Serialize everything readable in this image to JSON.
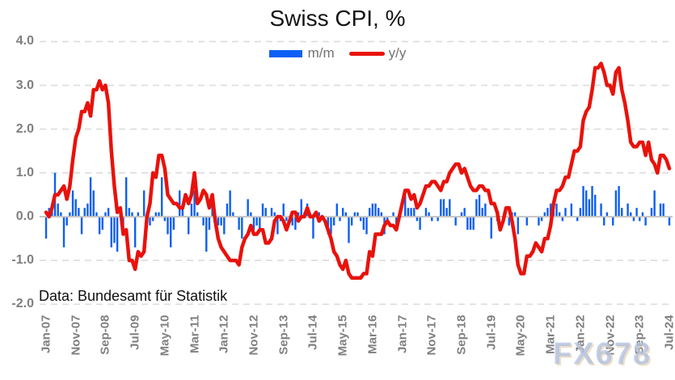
{
  "title": "Swiss CPI, %",
  "legend": {
    "mm_label": "m/m",
    "yy_label": "y/y"
  },
  "source_note": "Data: Bundesamt für Statistik",
  "watermark": "FX678",
  "colors": {
    "mm_bar": "#0d5ef5",
    "yy_line": "#e8120b",
    "grid": "#dcdcdc",
    "zero_line": "#c6c6c6",
    "axis_text": "#7f7f7f",
    "legend_text": "#737373",
    "title_text": "#141414"
  },
  "chart_data": {
    "type": "bar",
    "title": "Swiss CPI, %",
    "xlabel": "",
    "ylabel": "",
    "ylim": [
      -2.0,
      4.0
    ],
    "grid": "horizontal-dashed",
    "legend_position": "top-center",
    "x_start": "Jan-07",
    "x_end": "Jul-24",
    "x_frequency": "monthly",
    "x_tick_every_months": 10,
    "x_tick_labels": [
      "Jan-07",
      "Nov-07",
      "Sep-08",
      "Jul-09",
      "May-10",
      "Mar-11",
      "Jan-12",
      "Nov-12",
      "Sep-13",
      "Jul-14",
      "May-15",
      "Mar-16",
      "Jan-17",
      "Nov-17",
      "Sep-18",
      "Jul-19",
      "May-20",
      "Mar-21",
      "Jan-22",
      "Nov-22",
      "Sep-23",
      "Jul-24"
    ],
    "y_ticks": [
      "4.0",
      "3.0",
      "2.0",
      "1.0",
      "0.0",
      "-1.0",
      "-2.0"
    ],
    "series": [
      {
        "name": "m/m",
        "type": "bar",
        "color": "#0d5ef5",
        "values": [
          -0.5,
          0.2,
          0.2,
          1.0,
          0.3,
          0.1,
          -0.7,
          -0.2,
          0.1,
          0.6,
          0.4,
          0.2,
          -0.4,
          0.2,
          0.3,
          0.9,
          0.6,
          0.1,
          -0.4,
          -0.3,
          0.1,
          0.2,
          -0.7,
          -0.6,
          -0.8,
          0.2,
          -0.3,
          0.9,
          0.2,
          0.1,
          -0.7,
          0.1,
          0.0,
          0.6,
          0.1,
          -0.2,
          -0.1,
          0.1,
          0.1,
          0.9,
          -0.1,
          -0.4,
          -0.7,
          -0.3,
          0.0,
          0.6,
          0.2,
          0.0,
          -0.4,
          0.3,
          0.6,
          0.1,
          0.0,
          -0.2,
          -0.8,
          -0.3,
          0.3,
          0.1,
          -0.2,
          -0.2,
          -0.4,
          0.3,
          0.6,
          0.1,
          0.0,
          -0.3,
          -0.5,
          0.0,
          0.4,
          0.1,
          -0.3,
          -0.2,
          -0.3,
          0.3,
          0.2,
          0.0,
          0.2,
          0.1,
          -0.4,
          -0.1,
          0.3,
          -0.1,
          0.0,
          -0.2,
          -0.3,
          0.1,
          0.4,
          0.1,
          0.3,
          0.0,
          -0.5,
          0.0,
          0.1,
          0.0,
          0.0,
          -0.4,
          -0.4,
          -0.2,
          0.3,
          -0.1,
          0.2,
          0.1,
          -0.6,
          -0.2,
          0.1,
          0.1,
          -0.1,
          -0.3,
          -0.4,
          0.2,
          0.3,
          0.3,
          0.2,
          0.1,
          -0.4,
          -0.1,
          0.0,
          0.1,
          -0.2,
          0.0,
          0.0,
          0.5,
          0.2,
          0.2,
          0.2,
          -0.1,
          -0.3,
          0.0,
          0.2,
          0.1,
          -0.1,
          0.0,
          -0.1,
          0.4,
          0.4,
          0.2,
          0.4,
          0.0,
          -0.2,
          0.0,
          0.1,
          0.2,
          -0.3,
          -0.3,
          -0.3,
          0.4,
          0.5,
          0.2,
          0.3,
          0.0,
          -0.5,
          0.0,
          -0.1,
          0.0,
          0.0,
          0.0,
          -0.2,
          0.1,
          0.1,
          -0.4,
          0.0,
          0.0,
          -0.2,
          0.0,
          0.0,
          0.0,
          -0.2,
          -0.1,
          0.1,
          0.2,
          0.3,
          0.2,
          0.3,
          0.1,
          -0.1,
          0.2,
          0.0,
          0.3,
          0.0,
          -0.1,
          0.2,
          0.7,
          0.6,
          0.4,
          0.7,
          0.5,
          0.0,
          0.3,
          -0.2,
          0.1,
          0.0,
          -0.2,
          0.6,
          0.7,
          0.2,
          0.0,
          0.3,
          0.1,
          -0.1,
          0.2,
          -0.1,
          0.1,
          -0.2,
          0.0,
          0.2,
          0.6,
          0.0,
          0.3,
          0.3,
          0.0,
          -0.2
        ]
      },
      {
        "name": "y/y",
        "type": "line",
        "color": "#e8120b",
        "values": [
          0.1,
          0.0,
          0.2,
          0.5,
          0.5,
          0.6,
          0.7,
          0.4,
          0.7,
          1.3,
          1.8,
          2.0,
          2.4,
          2.4,
          2.6,
          2.3,
          2.9,
          2.9,
          3.1,
          2.9,
          3.0,
          2.6,
          1.5,
          0.7,
          0.1,
          0.2,
          -0.4,
          -0.3,
          -1.0,
          -1.0,
          -1.2,
          -0.8,
          -0.9,
          -0.8,
          0.0,
          0.3,
          1.0,
          0.9,
          1.4,
          1.4,
          1.1,
          0.5,
          0.4,
          0.3,
          0.3,
          0.2,
          0.2,
          0.5,
          0.3,
          0.5,
          1.0,
          0.3,
          0.4,
          0.6,
          0.5,
          0.2,
          0.5,
          -0.1,
          -0.5,
          -0.7,
          -0.8,
          -0.9,
          -1.0,
          -1.0,
          -1.0,
          -1.1,
          -0.7,
          -0.5,
          -0.4,
          -0.2,
          -0.4,
          -0.4,
          -0.3,
          -0.3,
          -0.6,
          -0.6,
          -0.5,
          -0.1,
          0.0,
          0.0,
          -0.1,
          -0.3,
          -0.1,
          0.1,
          0.1,
          -0.1,
          0.0,
          0.0,
          0.2,
          0.0,
          0.0,
          0.1,
          -0.1,
          0.0,
          -0.1,
          -0.3,
          -0.5,
          -0.8,
          -0.9,
          -1.1,
          -1.2,
          -1.0,
          -1.3,
          -1.4,
          -1.4,
          -1.4,
          -1.4,
          -1.3,
          -1.3,
          -0.8,
          -0.9,
          -0.4,
          -0.4,
          -0.4,
          -0.2,
          -0.1,
          -0.2,
          -0.2,
          -0.3,
          0.0,
          0.3,
          0.6,
          0.6,
          0.4,
          0.5,
          0.2,
          0.3,
          0.5,
          0.7,
          0.7,
          0.8,
          0.8,
          0.7,
          0.6,
          0.8,
          0.8,
          1.0,
          1.1,
          1.2,
          1.2,
          1.0,
          1.1,
          0.9,
          0.7,
          0.6,
          0.6,
          0.7,
          0.7,
          0.6,
          0.6,
          0.3,
          0.3,
          0.1,
          -0.3,
          -0.1,
          0.2,
          0.2,
          -0.1,
          -0.5,
          -1.1,
          -1.3,
          -1.3,
          -0.9,
          -0.9,
          -0.8,
          -0.6,
          -0.7,
          -0.8,
          -0.5,
          -0.5,
          -0.2,
          0.3,
          0.6,
          0.6,
          0.7,
          0.9,
          0.9,
          1.2,
          1.5,
          1.5,
          1.6,
          2.2,
          2.4,
          2.5,
          2.9,
          3.4,
          3.4,
          3.5,
          3.3,
          3.0,
          3.0,
          2.8,
          3.3,
          3.4,
          2.9,
          2.6,
          2.2,
          1.7,
          1.6,
          1.6,
          1.7,
          1.7,
          1.4,
          1.7,
          1.3,
          1.2,
          1.0,
          1.4,
          1.4,
          1.3,
          1.1
        ]
      }
    ]
  }
}
